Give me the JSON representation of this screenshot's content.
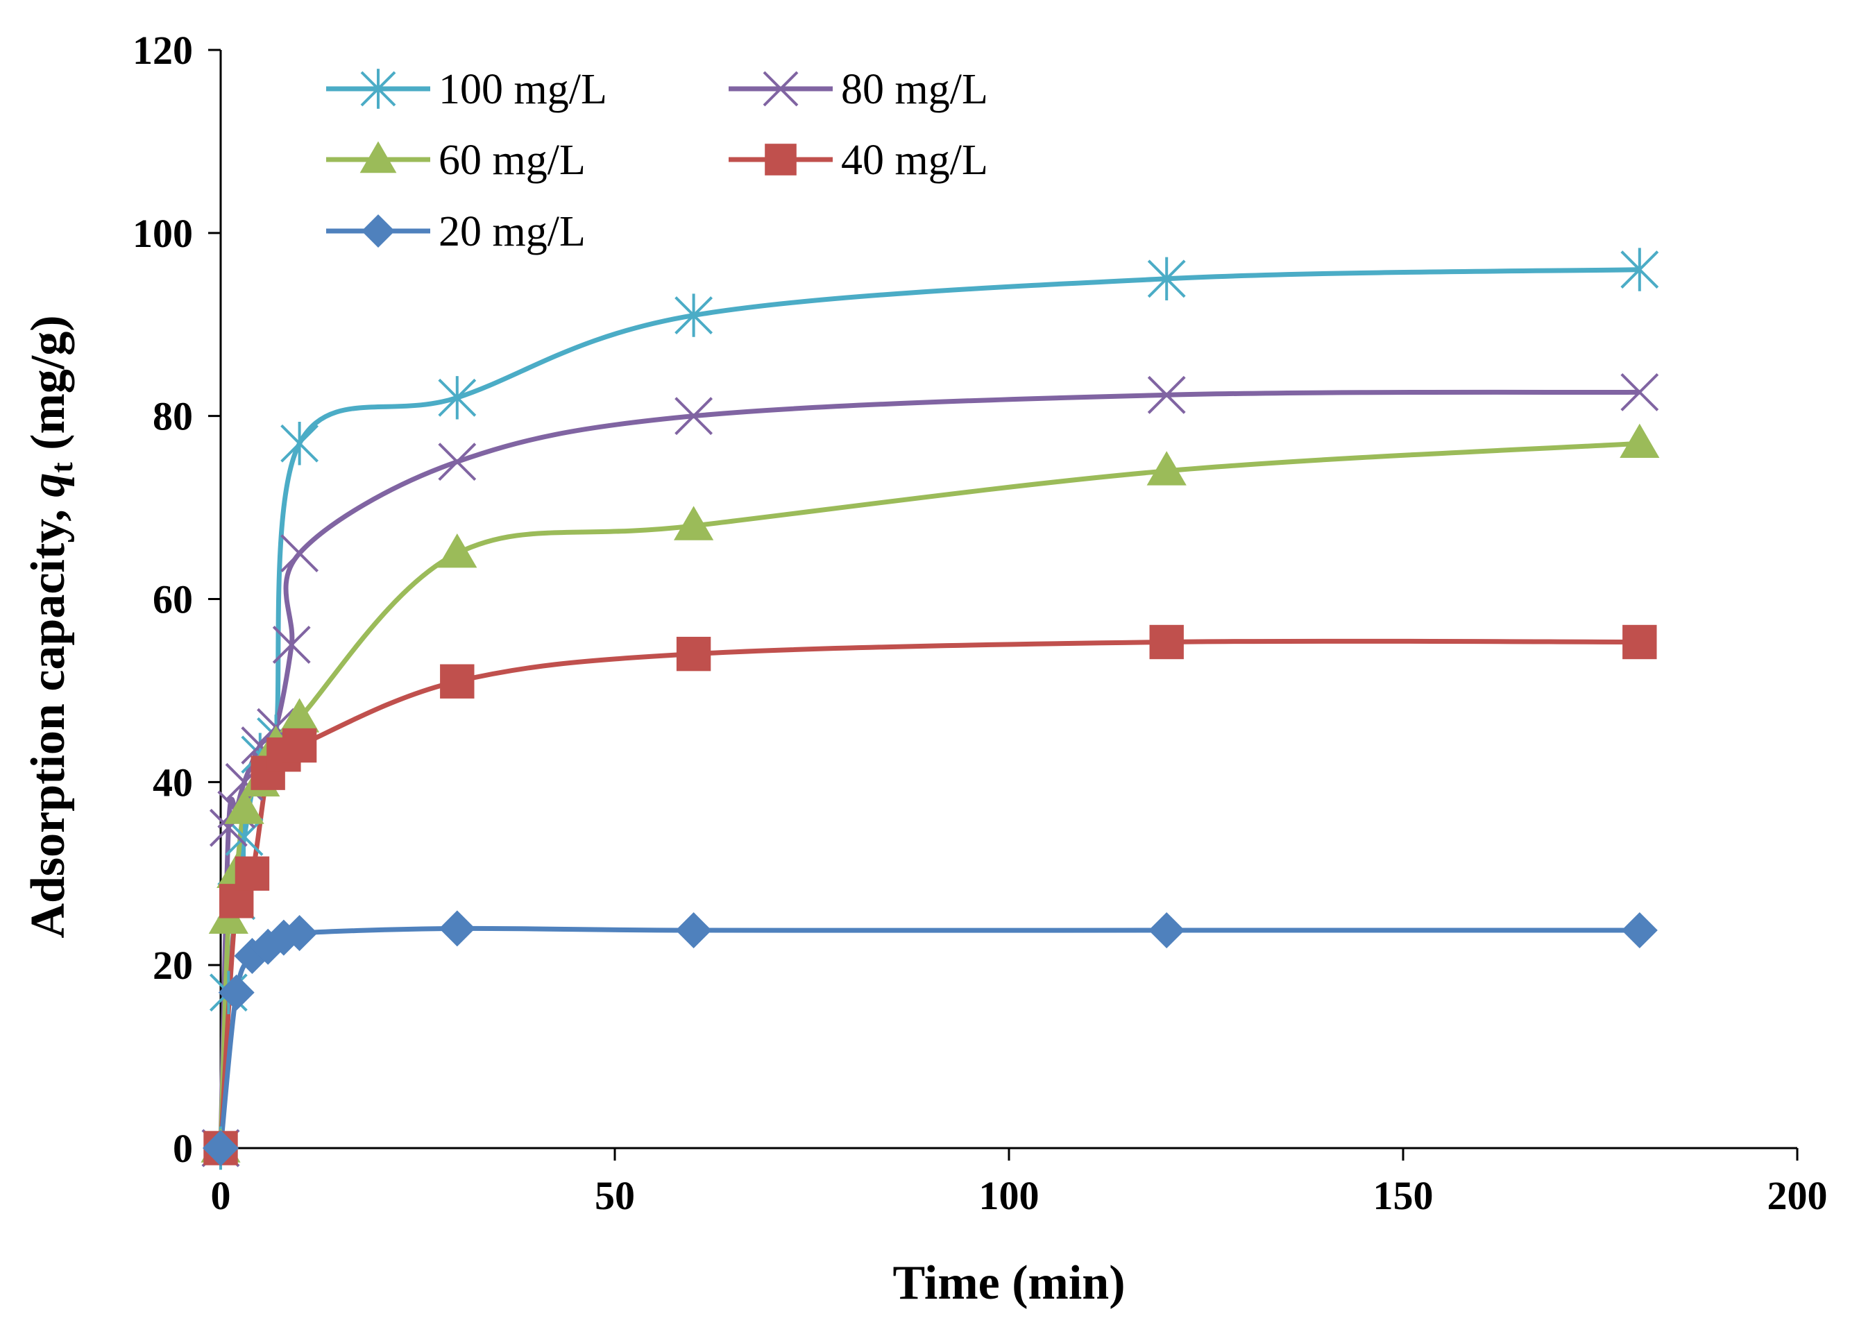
{
  "chart_data": {
    "type": "line",
    "title": "",
    "xlabel": "Time (min)",
    "ylabel_main": "Adsorption capacity, ",
    "ylabel_var": "q",
    "ylabel_sub": "t",
    "ylabel_unit": " (mg/g)",
    "xlim": [
      0,
      200
    ],
    "ylim": [
      0,
      120
    ],
    "x_ticks": [
      0,
      50,
      100,
      150,
      200
    ],
    "x_tick_labels": [
      "0",
      "50",
      "100",
      "150",
      "200"
    ],
    "y_ticks": [
      0,
      20,
      40,
      60,
      80,
      100,
      120
    ],
    "y_tick_labels": [
      "0",
      "20",
      "40",
      "60",
      "80",
      "100",
      "120"
    ],
    "grid": false,
    "legend_position": "top-left",
    "series": [
      {
        "name": "100 mg/L",
        "color": "#4BACC6",
        "marker": "asterisk",
        "x": [
          0,
          1,
          2,
          3,
          5,
          7,
          10,
          30,
          60,
          120,
          180
        ],
        "y": [
          0,
          17,
          27,
          34,
          43,
          45,
          77,
          82,
          91,
          95,
          96
        ]
      },
      {
        "name": "80 mg/L",
        "color": "#8064A2",
        "marker": "x",
        "x": [
          0,
          1,
          2,
          3,
          5,
          7,
          9,
          10,
          30,
          60,
          120,
          180
        ],
        "y": [
          0,
          35,
          37,
          40,
          44,
          46,
          55,
          65,
          75,
          80,
          82.3,
          82.6
        ]
      },
      {
        "name": "60 mg/L",
        "color": "#9BBB59",
        "marker": "triangle",
        "x": [
          0,
          1,
          2,
          3,
          5,
          7,
          10,
          30,
          60,
          120,
          180
        ],
        "y": [
          0,
          25,
          30,
          37,
          40,
          44,
          47,
          65,
          68,
          74,
          77
        ]
      },
      {
        "name": "40 mg/L",
        "color": "#C0504D",
        "marker": "square",
        "x": [
          0,
          2,
          4,
          6,
          8,
          10,
          30,
          60,
          120,
          180
        ],
        "y": [
          0,
          27,
          30,
          41,
          43,
          44,
          51,
          54,
          55.3,
          55.3
        ]
      },
      {
        "name": "20 mg/L",
        "color": "#4F81BD",
        "marker": "diamond",
        "x": [
          0,
          2,
          4,
          6,
          8,
          10,
          30,
          60,
          120,
          180
        ],
        "y": [
          0,
          17,
          21,
          22,
          23,
          23.5,
          24,
          23.8,
          23.8,
          23.8
        ]
      }
    ]
  }
}
